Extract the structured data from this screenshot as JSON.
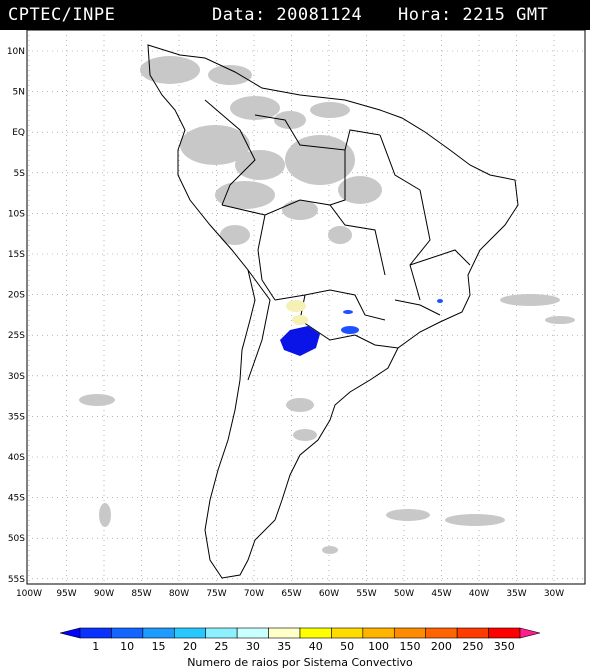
{
  "header": {
    "source": "CPTEC/INPE",
    "date_label": "Data: 20081124",
    "time_label": "Hora: 2215 GMT"
  },
  "axes": {
    "lat_labels": [
      "10N",
      "5N",
      "EQ",
      "5S",
      "10S",
      "15S",
      "20S",
      "25S",
      "30S",
      "35S",
      "40S",
      "45S",
      "50S",
      "55S"
    ],
    "lon_labels": [
      "100W",
      "95W",
      "90W",
      "85W",
      "80W",
      "75W",
      "70W",
      "65W",
      "60W",
      "55W",
      "50W",
      "45W",
      "40W",
      "35W",
      "30W"
    ]
  },
  "legend": {
    "title": "Numero de raios por Sistema Convectivo",
    "values": [
      "1",
      "10",
      "15",
      "20",
      "25",
      "30",
      "35",
      "40",
      "50",
      "100",
      "150",
      "200",
      "250",
      "350"
    ],
    "colors": [
      "#0000ff",
      "#0a32ff",
      "#1464ff",
      "#1e9bff",
      "#28c8ff",
      "#8cf0ff",
      "#c8ffff",
      "#ffffc8",
      "#ffff00",
      "#ffdc00",
      "#ffb400",
      "#ff8c00",
      "#ff6400",
      "#ff3c00",
      "#ff0000",
      "#ff1e8c"
    ]
  },
  "colors": {
    "cloud": "#c8c8c8",
    "storm_blue": "#0a14e6",
    "storm_light": "#f5f0b4"
  }
}
